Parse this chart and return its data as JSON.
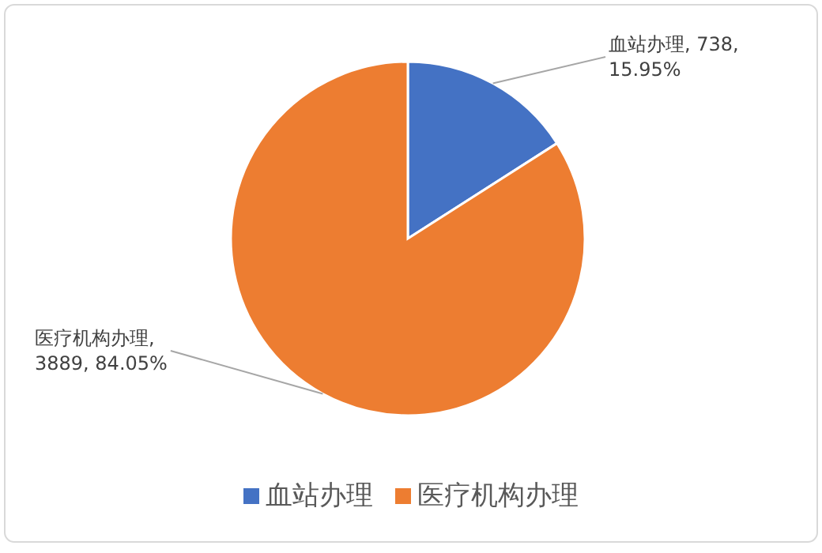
{
  "chart_data": {
    "type": "pie",
    "categories": [
      "血站办理",
      "医疗机构办理"
    ],
    "values": [
      738,
      3889
    ],
    "colors": [
      "#4472c4",
      "#ed7d31"
    ],
    "value_labels": [
      "血站办理, 738, 15.95%",
      "医疗机构办理, 3889, 84.05%"
    ],
    "legend": "bottom"
  }
}
